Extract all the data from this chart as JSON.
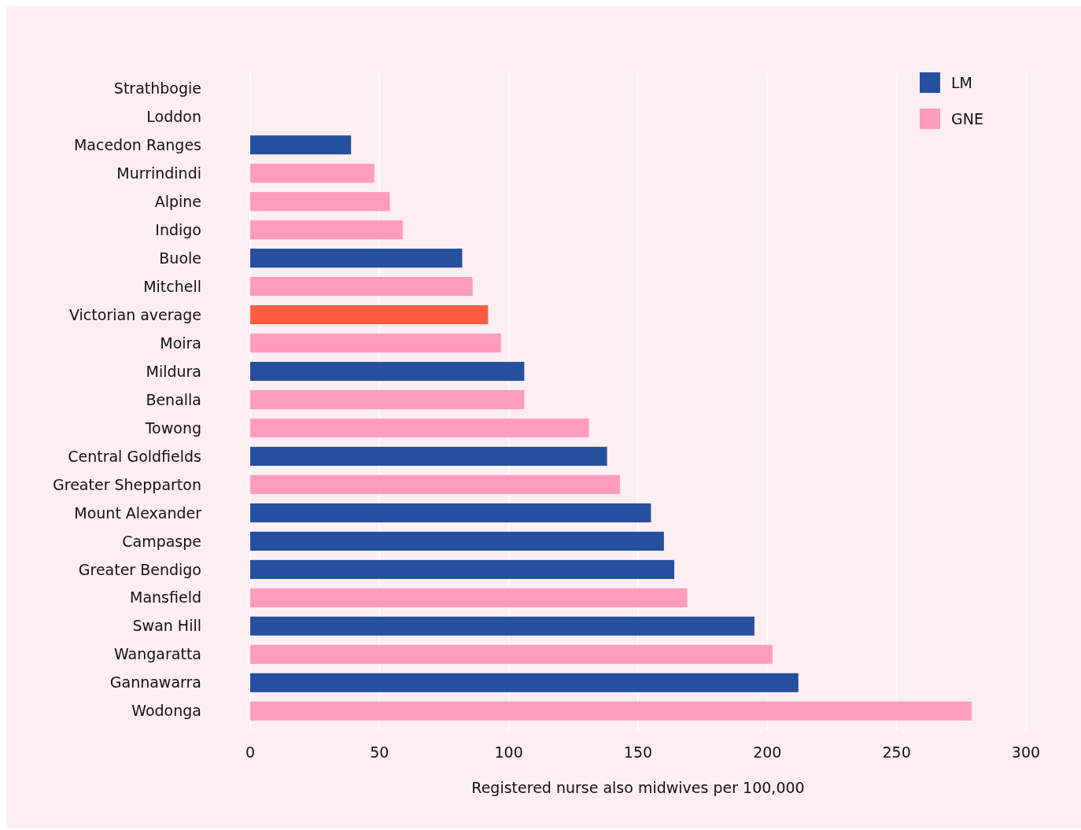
{
  "chart_data": {
    "type": "bar",
    "orientation": "horizontal",
    "xlabel": "Registered nurse also midwives per 100,000",
    "categories": [
      "Strathbogie",
      "Loddon",
      "Macedon Ranges",
      "Murrindindi",
      "Alpine",
      "Indigo",
      "Buole",
      "Mitchell",
      "Victorian average",
      "Moira",
      "Mildura",
      "Benalla",
      "Towong",
      "Central Goldfields",
      "Greater Shepparton",
      "Mount Alexander",
      "Campaspe",
      "Greater Bendigo",
      "Mansfield",
      "Swan Hill",
      "Wangaratta",
      "Gannawarra",
      "Wodonga"
    ],
    "series": [
      {
        "name": "LM",
        "color": "#264f9e",
        "values": [
          null,
          null,
          39,
          null,
          null,
          null,
          82,
          null,
          null,
          null,
          106,
          null,
          null,
          138,
          null,
          155,
          160,
          164,
          null,
          195,
          null,
          212,
          null
        ]
      },
      {
        "name": "GNE",
        "color": "#ff9cbb",
        "values": [
          null,
          null,
          null,
          48,
          54,
          59,
          null,
          86,
          null,
          97,
          null,
          106,
          131,
          null,
          143,
          null,
          null,
          null,
          169,
          null,
          202,
          null,
          279
        ]
      },
      {
        "color": "#ff5c3f",
        "values": [
          null,
          null,
          null,
          null,
          null,
          null,
          null,
          null,
          92,
          null,
          null,
          null,
          null,
          null,
          null,
          null,
          null,
          null,
          null,
          null,
          null,
          null,
          null
        ]
      }
    ],
    "xlim": [
      0,
      300
    ],
    "xticks": [
      0,
      50,
      100,
      150,
      200,
      250,
      300
    ],
    "grid": "x",
    "legend": "top right"
  }
}
